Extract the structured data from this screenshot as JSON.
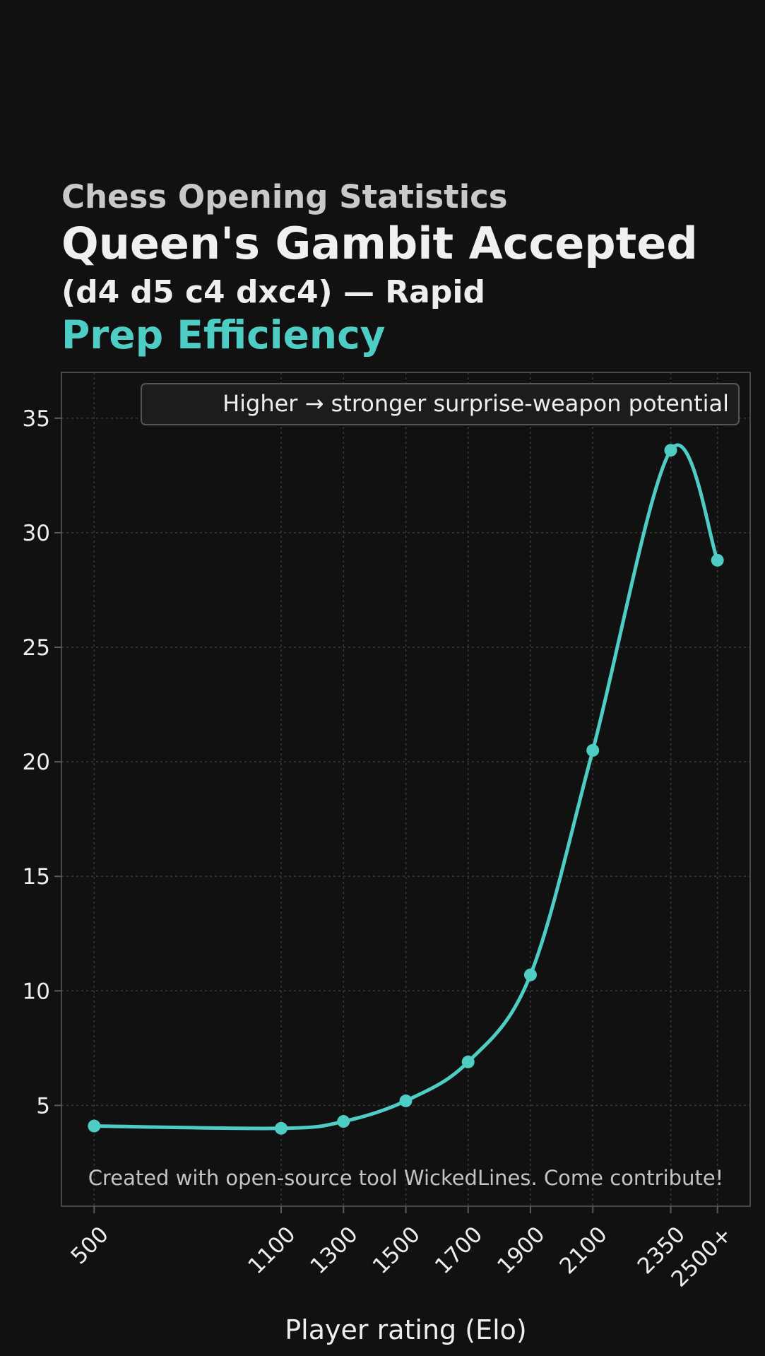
{
  "header": {
    "supertitle": "Chess Opening Statistics",
    "title": "Queen's Gambit Accepted",
    "subtitle": "(d4 d5 c4 dxc4) — Rapid",
    "metric": "Prep Efficiency"
  },
  "chart_data": {
    "type": "line",
    "x": [
      500,
      1100,
      1300,
      1500,
      1700,
      1900,
      2100,
      2350,
      2500
    ],
    "x_tick_labels": [
      "500",
      "1100",
      "1300",
      "1500",
      "1700",
      "1900",
      "2100",
      "2350",
      "2500+"
    ],
    "values": [
      4.1,
      4.0,
      4.3,
      5.2,
      6.9,
      10.7,
      20.5,
      33.6,
      28.8
    ],
    "xlabel": "Player rating (Elo)",
    "ylabel": "",
    "yticks": [
      5,
      10,
      15,
      20,
      25,
      30,
      35
    ],
    "ylim": [
      0.6,
      37
    ],
    "xlim": [
      395,
      2605
    ],
    "grid": true,
    "legend": "Higher → stronger surprise-weapon potential",
    "legend_position": "top-right",
    "annotation": "Created with open-source tool WickedLines. Come contribute!",
    "colors": {
      "line": "#4ecdc4",
      "background": "#111111",
      "grid": "#3a3a3a",
      "frame": "#5a5a5a",
      "text": "#eeeeee"
    }
  }
}
